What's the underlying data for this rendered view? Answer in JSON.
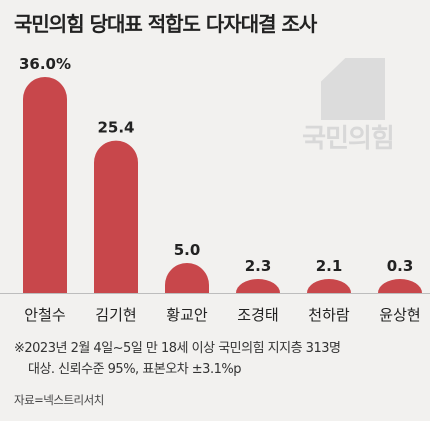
{
  "title": "국민의힘 당대표 적합도 다자대결 조사",
  "logo": {
    "text": "국민의힘"
  },
  "chart_data": {
    "type": "bar",
    "title": "국민의힘 당대표 적합도 다자대결 조사",
    "categories": [
      "안철수",
      "김기현",
      "황교안",
      "조경태",
      "천하람",
      "윤상현"
    ],
    "values": [
      36.0,
      25.4,
      5.0,
      2.3,
      2.1,
      0.3
    ],
    "value_labels": [
      "36.0%",
      "25.4",
      "5.0",
      "2.3",
      "2.1",
      "0.3"
    ],
    "bar_color": "#c8474b",
    "ylim": [
      0,
      36
    ],
    "grid": false,
    "legend": "none"
  },
  "note_lines": [
    "※2023년 2월 4일~5일 만 18세 이상 국민의힘 지지층 313명",
    "대상. 신뢰수준 95%, 표본오차 ±3.1%p"
  ],
  "source": "자료=넥스트리서치"
}
